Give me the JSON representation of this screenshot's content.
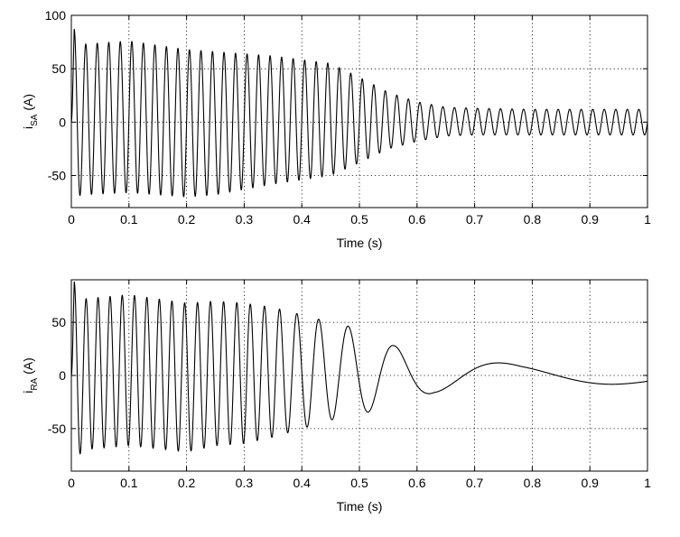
{
  "chart_data": [
    {
      "type": "line",
      "xlabel": "Time (s)",
      "ylabel_main": "i",
      "ylabel_sub": "SA",
      "ylabel_unit": " (A)",
      "xlim": [
        0,
        1
      ],
      "ylim": [
        -80,
        100
      ],
      "xticks": [
        0,
        0.1,
        0.2,
        0.3,
        0.4,
        0.5,
        0.6,
        0.7,
        0.8,
        0.9,
        1
      ],
      "xtick_labels": [
        "0",
        "0.1",
        "0.2",
        "0.3",
        "0.4",
        "0.5",
        "0.6",
        "0.7",
        "0.8",
        "0.9",
        "1"
      ],
      "yticks": [
        -50,
        0,
        50,
        100
      ],
      "ytick_labels": [
        "-50",
        "0",
        "50",
        "100"
      ],
      "grid": true,
      "series": [
        {
          "frequency_hz": 50,
          "envelope": {
            "t": [
              0,
              0.005,
              0.02,
              0.1,
              0.2,
              0.25,
              0.35,
              0.45,
              0.5,
              0.55,
              0.6,
              0.65,
              0.7,
              0.8,
              1.0
            ],
            "upper": [
              0,
              87,
              73,
              76,
              68,
              66,
              62,
              55,
              42,
              28,
              19,
              14,
              13,
              12,
              12
            ],
            "lower": [
              0,
              -70,
              -68,
              -66,
              -70,
              -68,
              -58,
              -50,
              -38,
              -25,
              -18,
              -13,
              -12,
              -12,
              -12
            ]
          }
        }
      ]
    },
    {
      "type": "line",
      "xlabel": "Time (s)",
      "ylabel_main": "i",
      "ylabel_sub": "RA",
      "ylabel_unit": " (A)",
      "xlim": [
        0,
        1
      ],
      "ylim": [
        -90,
        90
      ],
      "xticks": [
        0,
        0.1,
        0.2,
        0.3,
        0.4,
        0.5,
        0.6,
        0.7,
        0.8,
        0.9,
        1
      ],
      "xtick_labels": [
        "0",
        "0.1",
        "0.2",
        "0.3",
        "0.4",
        "0.5",
        "0.6",
        "0.7",
        "0.8",
        "0.9",
        "1"
      ],
      "yticks": [
        -50,
        0,
        50
      ],
      "ytick_labels": [
        "-50",
        "0",
        "50"
      ],
      "grid": true,
      "series": [
        {
          "frequency": {
            "t": [
              0,
              0.3,
              0.36,
              0.4,
              0.45,
              0.5,
              0.55,
              0.6,
              0.65,
              0.8,
              1.0
            ],
            "hz": [
              49,
              43,
              37,
              28,
              20,
              14,
              10,
              7,
              4.5,
              2.6,
              2.3
            ]
          },
          "envelope": {
            "t": [
              0,
              0.005,
              0.02,
              0.1,
              0.2,
              0.25,
              0.3,
              0.35,
              0.4,
              0.45,
              0.5,
              0.56,
              0.63,
              0.78,
              0.97,
              1.0
            ],
            "upper": [
              0,
              88,
              72,
              76,
              68,
              70,
              68,
              64,
              57,
              50,
              44,
              28,
              18,
              10,
              8,
              8
            ],
            "lower": [
              0,
              -82,
              -70,
              -66,
              -72,
              -66,
              -64,
              -58,
              -50,
              -42,
              -36,
              -30,
              -16,
              -10,
              -8,
              -8
            ]
          }
        }
      ]
    }
  ]
}
